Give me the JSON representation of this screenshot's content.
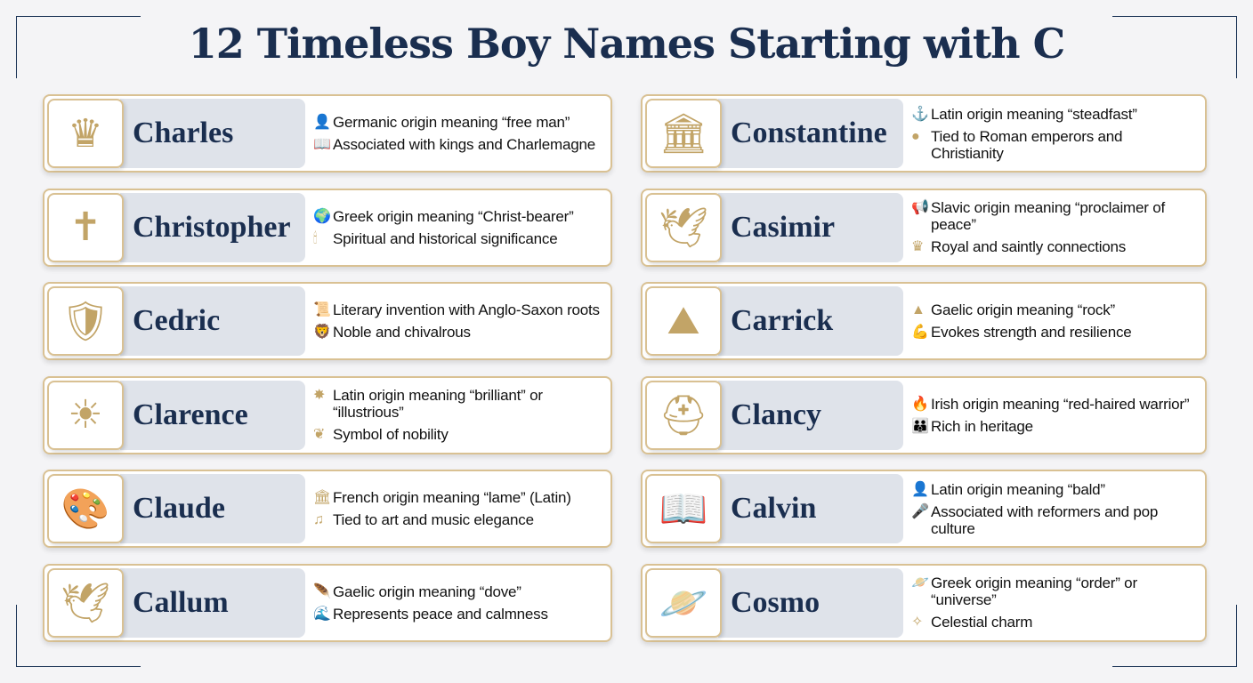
{
  "title": "12 Timeless Boy Names Starting with C",
  "colors": {
    "navy": "#1a2e4f",
    "gold": "#c2a467",
    "pill": "#dfe3ea"
  },
  "left": [
    {
      "name": "Charles",
      "icon": "crown-icon",
      "glyph": "♛",
      "facts": [
        {
          "icon": "person-icon",
          "glyph": "👤",
          "text": "Germanic origin meaning “free man”"
        },
        {
          "icon": "book-icon",
          "glyph": "📖",
          "text": "Associated with kings and Charlemagne"
        }
      ]
    },
    {
      "name": "Christopher",
      "icon": "cross-person-icon",
      "glyph": "✝",
      "facts": [
        {
          "icon": "globe-icon",
          "glyph": "🌍",
          "text": "Greek origin meaning “Christ-bearer”"
        },
        {
          "icon": "candle-icon",
          "glyph": "🕯",
          "text": "Spiritual and historical significance"
        }
      ]
    },
    {
      "name": "Cedric",
      "icon": "shield-sword-icon",
      "glyph": "🛡",
      "facts": [
        {
          "icon": "scroll-icon",
          "glyph": "📜",
          "text": "Literary invention with Anglo-Saxon roots"
        },
        {
          "icon": "lion-icon",
          "glyph": "🦁",
          "text": "Noble and chivalrous"
        }
      ]
    },
    {
      "name": "Clarence",
      "icon": "sun-icon",
      "glyph": "☀",
      "facts": [
        {
          "icon": "star-burst-icon",
          "glyph": "✸",
          "text": "Latin origin meaning “brilliant” or “illustrious”"
        },
        {
          "icon": "laurel-icon",
          "glyph": "❦",
          "text": "Symbol of nobility"
        }
      ]
    },
    {
      "name": "Claude",
      "icon": "palette-clef-icon",
      "glyph": "🎨",
      "facts": [
        {
          "icon": "column-icon",
          "glyph": "🏛",
          "text": "French origin meaning “lame” (Latin)"
        },
        {
          "icon": "music-note-icon",
          "glyph": "♫",
          "text": "Tied to art and music elegance"
        }
      ]
    },
    {
      "name": "Callum",
      "icon": "dove-icon",
      "glyph": "🕊",
      "facts": [
        {
          "icon": "feather-icon",
          "glyph": "🪶",
          "text": "Gaelic origin meaning “dove”"
        },
        {
          "icon": "wave-icon",
          "glyph": "🌊",
          "text": "Represents peace and calmness"
        }
      ]
    }
  ],
  "right": [
    {
      "name": "Constantine",
      "icon": "column-laurel-icon",
      "glyph": "🏛",
      "facts": [
        {
          "icon": "anchor-icon",
          "glyph": "⚓",
          "text": "Latin origin meaning “steadfast”"
        },
        {
          "icon": "coin-icon",
          "glyph": "●",
          "text": "Tied to Roman emperors and Christianity"
        }
      ]
    },
    {
      "name": "Casimir",
      "icon": "scepter-dove-icon",
      "glyph": "🕊",
      "facts": [
        {
          "icon": "megaphone-icon",
          "glyph": "📢",
          "text": "Slavic origin meaning “proclaimer of peace”"
        },
        {
          "icon": "crown-icon",
          "glyph": "♛",
          "text": "Royal and saintly connections"
        }
      ]
    },
    {
      "name": "Carrick",
      "icon": "rock-icon",
      "glyph": "⛰",
      "facts": [
        {
          "icon": "mountain-icon",
          "glyph": "▲",
          "text": "Gaelic origin meaning “rock”"
        },
        {
          "icon": "muscle-icon",
          "glyph": "💪",
          "text": "Evokes strength and resilience"
        }
      ]
    },
    {
      "name": "Clancy",
      "icon": "helmet-icon",
      "glyph": "⛑",
      "facts": [
        {
          "icon": "flame-icon",
          "glyph": "🔥",
          "text": "Irish origin meaning “red-haired warrior”"
        },
        {
          "icon": "family-icon",
          "glyph": "👪",
          "text": "Rich in heritage"
        }
      ]
    },
    {
      "name": "Calvin",
      "icon": "book-quill-icon",
      "glyph": "📖",
      "facts": [
        {
          "icon": "head-icon",
          "glyph": "👤",
          "text": "Latin origin meaning “bald”"
        },
        {
          "icon": "microphone-icon",
          "glyph": "🎤",
          "text": "Associated with reformers and pop culture"
        }
      ]
    },
    {
      "name": "Cosmo",
      "icon": "planet-icon",
      "glyph": "🪐",
      "facts": [
        {
          "icon": "planet-small-icon",
          "glyph": "🪐",
          "text": "Greek origin meaning “order” or “universe”"
        },
        {
          "icon": "constellation-icon",
          "glyph": "✧",
          "text": "Celestial charm"
        }
      ]
    }
  ]
}
